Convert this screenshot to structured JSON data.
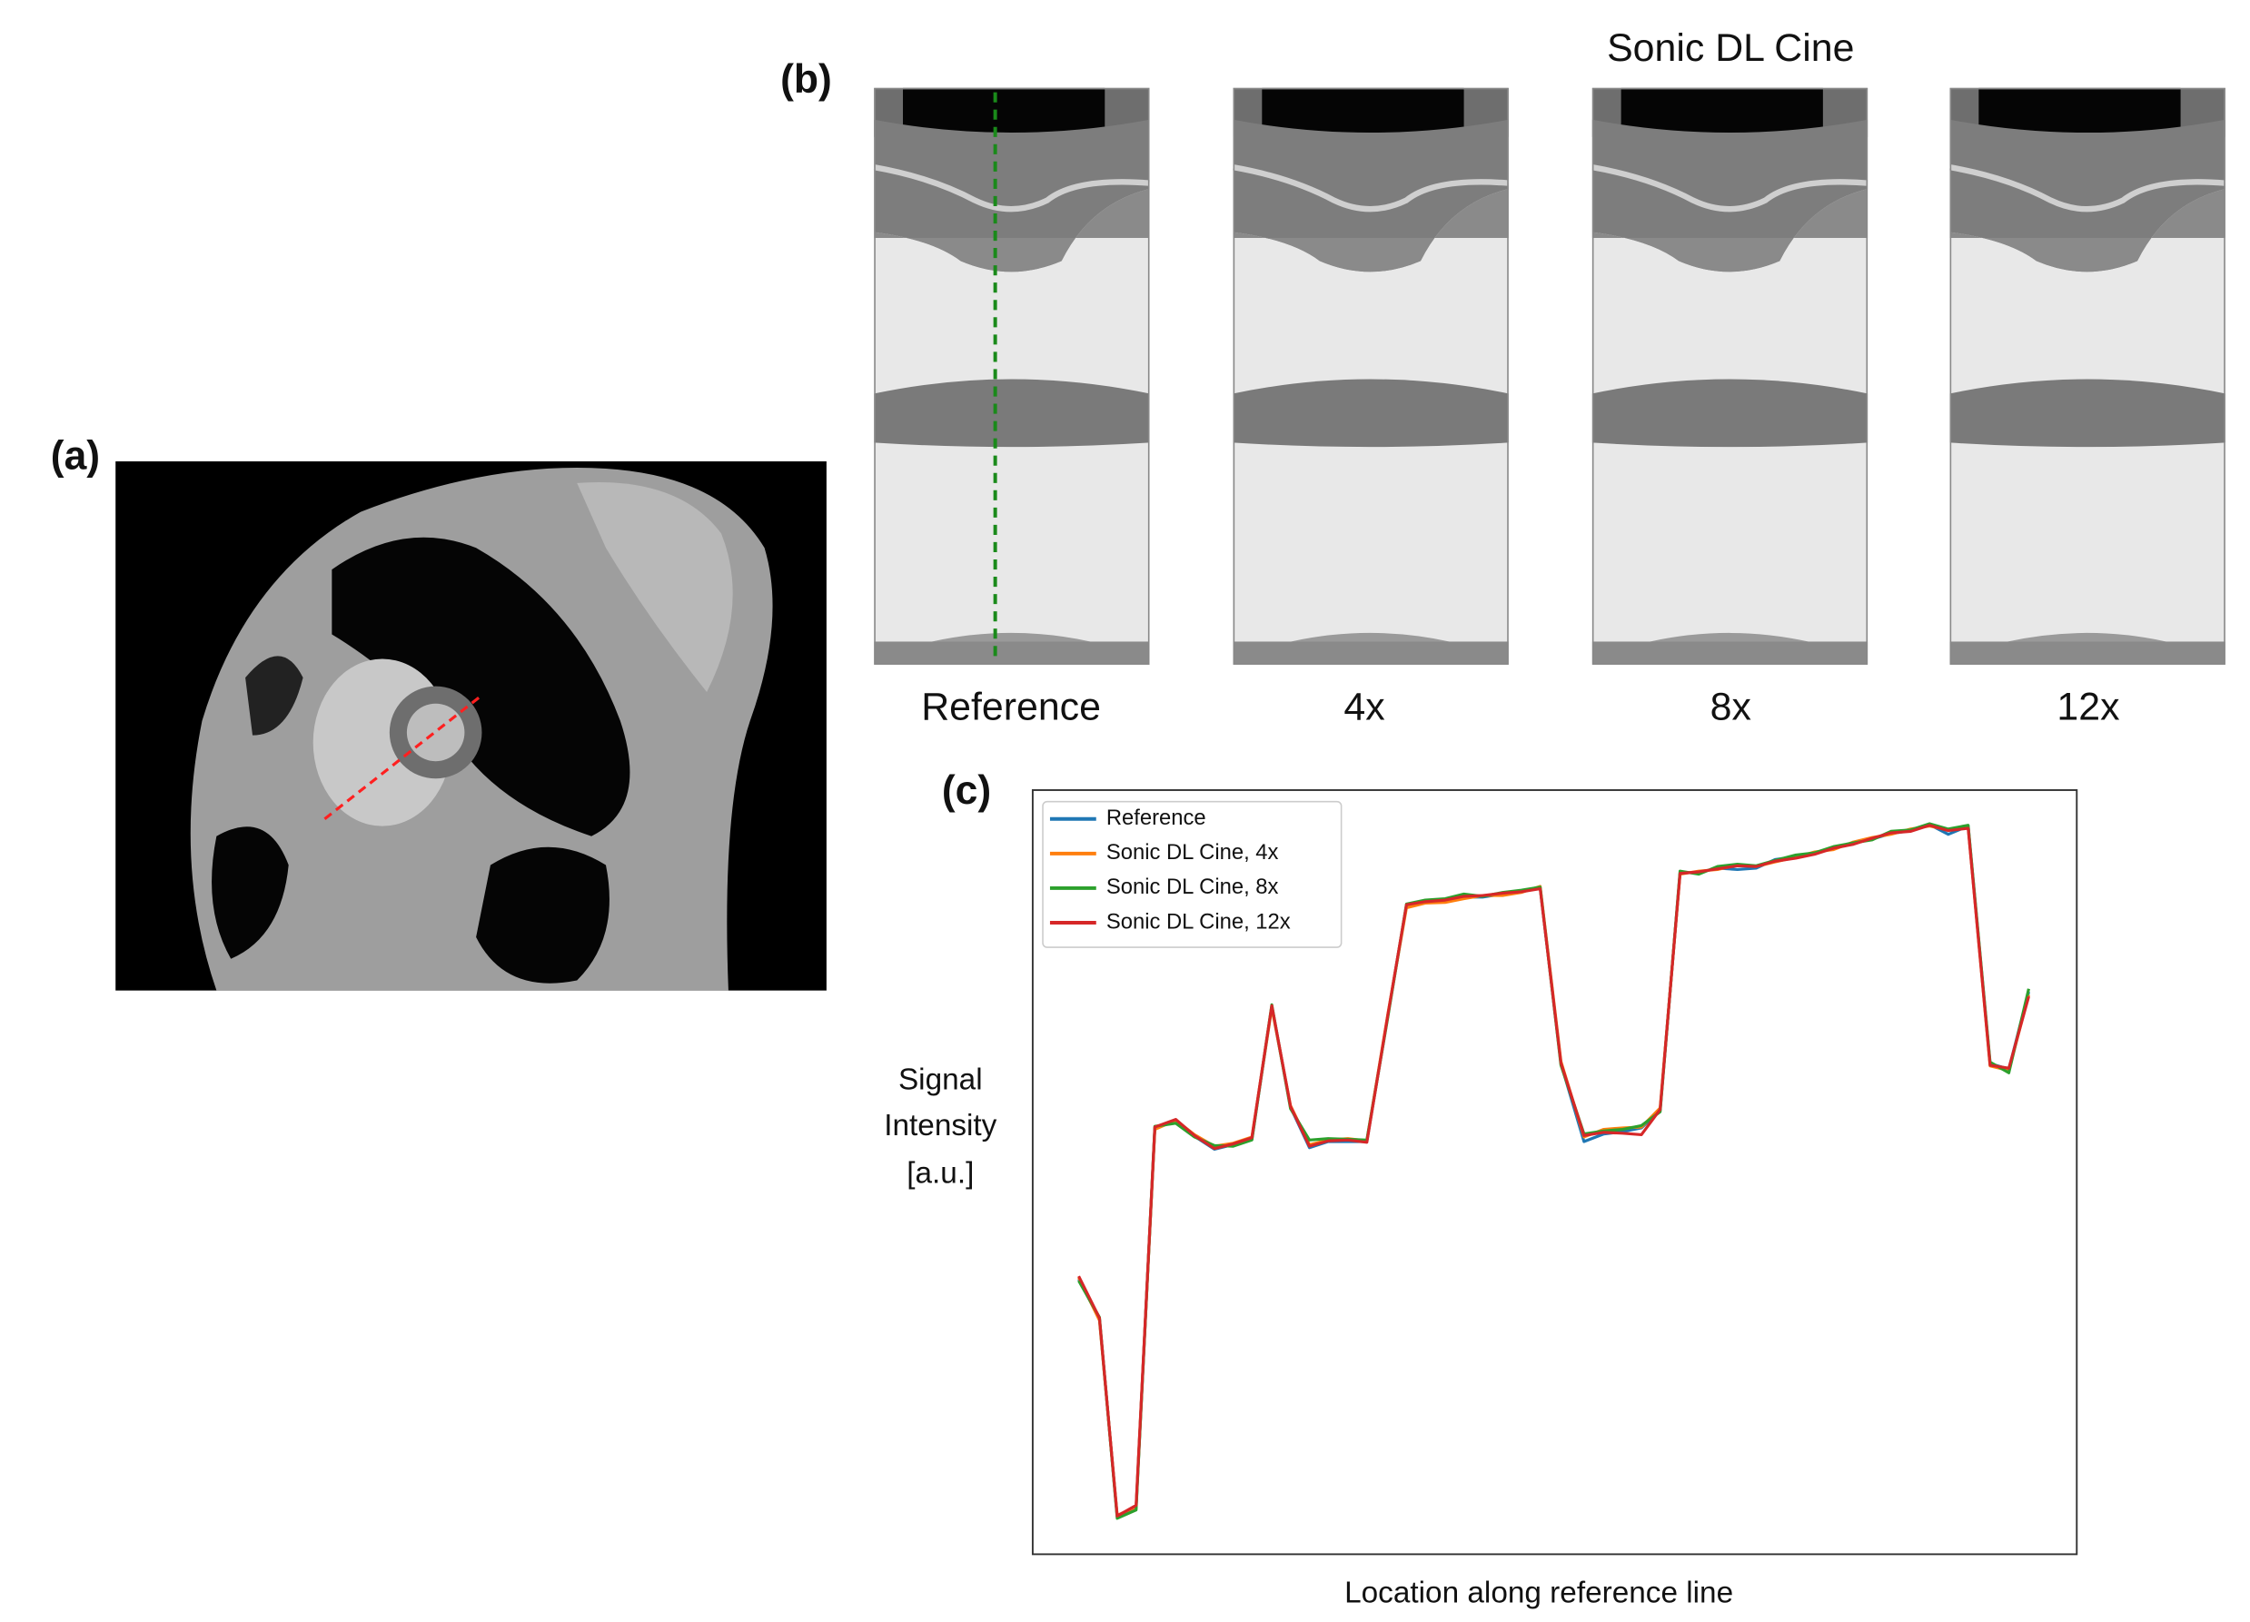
{
  "panel_labels": {
    "a": "(a)",
    "b": "(b)",
    "c": "(c)"
  },
  "images": {
    "title": "Sonic DL Cine",
    "labels": [
      "Reference",
      "4x",
      "8x",
      "12x"
    ]
  },
  "chart_data": {
    "type": "line",
    "x_label": "Location along reference line",
    "y_label": [
      "Signal",
      "Intensity",
      "[a.u.]"
    ],
    "legend": "upper left",
    "xlim": [
      0,
      100
    ],
    "ylim": [
      0,
      100
    ],
    "x": [
      4.4,
      6.4,
      8.1,
      9.9,
      11.7,
      13.7,
      15.5,
      17.4,
      19.2,
      21.0,
      22.9,
      24.7,
      26.5,
      28.3,
      30.2,
      32.0,
      34.0,
      35.8,
      37.6,
      39.5,
      41.3,
      43.1,
      45.0,
      46.8,
      48.6,
      50.6,
      52.8,
      54.7,
      56.5,
      58.3,
      60.1,
      62.0,
      63.8,
      65.6,
      67.5,
      69.3,
      71.1,
      73.1,
      74.9,
      76.7,
      78.6,
      80.4,
      82.2,
      84.1,
      85.9,
      87.7,
      89.6,
      91.7,
      93.5,
      95.4
    ],
    "series": [
      {
        "name": "Reference",
        "color": "#1f77b4",
        "values": [
          36.0,
          30.8,
          4.9,
          6.0,
          55.8,
          56.6,
          54.7,
          53.0,
          53.6,
          54.3,
          71.7,
          58.5,
          53.2,
          54.0,
          54.0,
          54.0,
          70.4,
          84.9,
          85.5,
          85.5,
          86.0,
          86.0,
          86.4,
          86.8,
          87.2,
          64.2,
          54.0,
          55.0,
          55.3,
          55.8,
          58.1,
          89.2,
          89.2,
          89.8,
          89.6,
          89.8,
          90.9,
          91.3,
          91.7,
          92.5,
          93.0,
          93.6,
          94.3,
          94.7,
          95.5,
          94.2,
          95.3,
          64.2,
          63.5,
          73.6
        ]
      },
      {
        "name": "Sonic DL Cine, 4x",
        "color": "#ff7f0e",
        "values": [
          36.2,
          30.6,
          5.1,
          6.2,
          55.6,
          56.8,
          54.9,
          53.4,
          53.8,
          54.6,
          71.5,
          58.7,
          53.6,
          54.2,
          54.4,
          54.1,
          70.6,
          84.6,
          85.2,
          85.3,
          85.8,
          86.2,
          86.2,
          86.6,
          87.4,
          64.5,
          54.6,
          55.6,
          55.8,
          55.9,
          58.4,
          89.0,
          89.4,
          89.6,
          90.2,
          90.0,
          90.6,
          91.2,
          91.9,
          92.2,
          93.2,
          93.8,
          94.2,
          94.9,
          95.3,
          94.8,
          95.1,
          63.9,
          63.3,
          73.2
        ]
      },
      {
        "name": "Sonic DL Cine, 8x",
        "color": "#2ca02c",
        "values": [
          35.8,
          31.0,
          4.7,
          5.8,
          56.0,
          56.4,
          54.6,
          53.5,
          53.4,
          54.2,
          71.9,
          58.3,
          54.2,
          54.4,
          54.3,
          54.2,
          70.2,
          85.1,
          85.6,
          85.8,
          86.4,
          86.1,
          86.6,
          86.9,
          87.3,
          64.0,
          55.0,
          55.4,
          55.6,
          56.1,
          57.9,
          89.4,
          89.0,
          90.0,
          90.3,
          90.1,
          90.8,
          91.5,
          91.8,
          92.6,
          93.1,
          93.5,
          94.6,
          94.8,
          95.6,
          94.9,
          95.4,
          64.4,
          63.0,
          74.0
        ]
      },
      {
        "name": "Sonic DL Cine, 12x",
        "color": "#d62728",
        "values": [
          36.4,
          30.9,
          5.0,
          6.4,
          55.9,
          56.9,
          54.8,
          53.1,
          53.7,
          54.5,
          71.8,
          58.6,
          53.4,
          54.1,
          54.2,
          53.9,
          70.5,
          85.0,
          85.4,
          85.6,
          86.1,
          86.2,
          86.5,
          86.7,
          87.1,
          64.3,
          54.8,
          55.2,
          55.1,
          54.9,
          58.2,
          89.1,
          89.3,
          89.7,
          90.1,
          90.0,
          90.7,
          91.1,
          91.6,
          92.4,
          92.9,
          93.7,
          94.4,
          94.6,
          95.4,
          94.7,
          95.0,
          64.0,
          63.6,
          73.0
        ]
      }
    ]
  }
}
